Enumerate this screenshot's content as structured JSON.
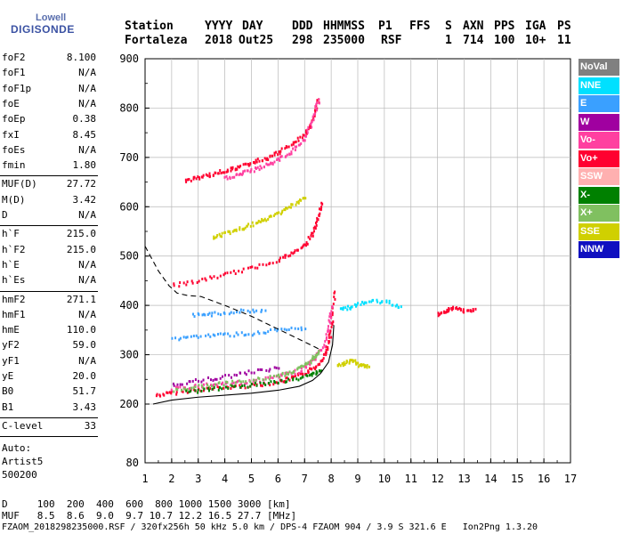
{
  "logo": {
    "top": "Lowell",
    "bottom": "DIGISONDE"
  },
  "header": {
    "labels": [
      "Station",
      "YYYY",
      "DAY",
      "DDD",
      "HHMMSS",
      "P1",
      "FFS",
      "S",
      "AXN",
      "PPS",
      "IGA",
      "PS"
    ],
    "values": [
      "Fortaleza",
      "2018",
      "Out25",
      "298",
      "235000",
      "RSF",
      "1",
      "714",
      "100",
      "10+",
      "11"
    ]
  },
  "params": {
    "groups": [
      [
        [
          "foF2",
          "8.100"
        ],
        [
          "foF1",
          "N/A"
        ],
        [
          "foF1p",
          "N/A"
        ],
        [
          "foE",
          "N/A"
        ],
        [
          "foEp",
          "0.38"
        ],
        [
          "fxI",
          "8.45"
        ],
        [
          "foEs",
          "N/A"
        ],
        [
          "fmin",
          "1.80"
        ]
      ],
      [
        [
          "MUF(D)",
          "27.72"
        ],
        [
          "M(D)",
          "3.42"
        ],
        [
          "D",
          "N/A"
        ]
      ],
      [
        [
          "h`F",
          "215.0"
        ],
        [
          "h`F2",
          "215.0"
        ],
        [
          "h`E",
          "N/A"
        ],
        [
          "h`Es",
          "N/A"
        ]
      ],
      [
        [
          "hmF2",
          "271.1"
        ],
        [
          "hmF1",
          "N/A"
        ],
        [
          "hmE",
          "110.0"
        ],
        [
          "yF2",
          "59.0"
        ],
        [
          "yF1",
          "N/A"
        ],
        [
          "yE",
          "20.0"
        ],
        [
          "B0",
          "51.7"
        ],
        [
          "B1",
          "3.43"
        ]
      ],
      [
        [
          "C-level",
          "33"
        ]
      ]
    ],
    "auto_lines": [
      "Auto:",
      "Artist5",
      "500200"
    ]
  },
  "footer": {
    "d_line": "D     100  200  400  600  800 1000 1500 3000 [km]",
    "muf_line": "MUF   8.5  8.6  9.0  9.7 10.7 12.2 16.5 27.7 [MHz]",
    "file_line": "FZAOM_2018298235000.RSF / 320fx256h 50 kHz 5.0 km / DPS-4 FZAOM 904 / 3.9 S 321.6 E   Ion2Png 1.3.20"
  },
  "legend": [
    {
      "label": "NoVal",
      "color": "#808080"
    },
    {
      "label": "NNE",
      "color": "#00e0ff"
    },
    {
      "label": "E",
      "color": "#3aa0ff"
    },
    {
      "label": "W",
      "color": "#a000a0"
    },
    {
      "label": "Vo-",
      "color": "#ff40a0"
    },
    {
      "label": "Vo+",
      "color": "#ff0030"
    },
    {
      "label": "SSW",
      "color": "#ffb0b0"
    },
    {
      "label": "X-",
      "color": "#008000"
    },
    {
      "label": "X+",
      "color": "#80c060"
    },
    {
      "label": "SSE",
      "color": "#d0d000"
    },
    {
      "label": "NNW",
      "color": "#1010c0"
    }
  ],
  "chart_data": {
    "type": "scatter",
    "xlim": [
      1,
      17
    ],
    "ylim": [
      80,
      900
    ],
    "xticks": [
      1,
      2,
      3,
      4,
      5,
      6,
      7,
      8,
      9,
      10,
      11,
      12,
      13,
      14,
      15,
      16,
      17
    ],
    "yticks": [
      80,
      200,
      300,
      400,
      500,
      600,
      700,
      800,
      900
    ],
    "grid": true,
    "traces": [
      {
        "name": "Vo+",
        "color": "#ff0030",
        "x": [
          1.4,
          2.0,
          3.0,
          4.0,
          5.0,
          6.0,
          6.5,
          7.0,
          7.4,
          7.7,
          7.9,
          8.0,
          8.1
        ],
        "y": [
          220,
          225,
          232,
          236,
          240,
          247,
          255,
          265,
          278,
          300,
          330,
          370,
          430
        ]
      },
      {
        "name": "Vo-",
        "color": "#ff40a0",
        "x": [
          2.0,
          3.0,
          4.0,
          5.0,
          6.0,
          6.8,
          7.3,
          7.7,
          7.9,
          8.0
        ],
        "y": [
          233,
          240,
          245,
          248,
          258,
          270,
          290,
          320,
          360,
          400
        ]
      },
      {
        "name": "X+",
        "color": "#80c060",
        "x": [
          2.0,
          3.0,
          4.0,
          5.0,
          6.0,
          6.5,
          7.0,
          7.3,
          7.5
        ],
        "y": [
          230,
          238,
          244,
          250,
          260,
          268,
          280,
          295,
          310
        ]
      },
      {
        "name": "Vo+",
        "color": "#ff0030",
        "x": [
          2.0,
          3.0,
          4.0,
          5.0,
          6.0,
          6.5,
          7.0,
          7.3,
          7.5,
          7.6
        ],
        "y": [
          443,
          452,
          465,
          478,
          495,
          508,
          525,
          550,
          580,
          610
        ]
      },
      {
        "name": "Vo+",
        "color": "#ff0030",
        "x": [
          2.5,
          3.0,
          3.5,
          4.0,
          4.5,
          5.0,
          5.5,
          6.0,
          6.5,
          7.0,
          7.3,
          7.5
        ],
        "y": [
          655,
          662,
          668,
          676,
          682,
          692,
          700,
          712,
          730,
          750,
          780,
          820
        ]
      },
      {
        "name": "Vo-",
        "color": "#ff40a0",
        "x": [
          4.0,
          4.5,
          5.0,
          5.5,
          6.0,
          6.5,
          7.0,
          7.3,
          7.5
        ],
        "y": [
          660,
          668,
          676,
          686,
          698,
          715,
          740,
          780,
          820
        ]
      },
      {
        "name": "SSE",
        "color": "#d0d000",
        "x": [
          3.5,
          4.0,
          4.5,
          5.0,
          5.5,
          6.0,
          6.5,
          7.0
        ],
        "y": [
          540,
          548,
          556,
          566,
          576,
          590,
          605,
          620
        ]
      },
      {
        "name": "E",
        "color": "#3aa0ff",
        "x": [
          2.0,
          3.0,
          4.0,
          5.0,
          6.0,
          7.0
        ],
        "y": [
          335,
          340,
          343,
          345,
          352,
          355
        ]
      },
      {
        "name": "E",
        "color": "#3aa0ff",
        "x": [
          2.8,
          3.5,
          4.5,
          5.5
        ],
        "y": [
          382,
          385,
          390,
          392
        ]
      },
      {
        "name": "NNE",
        "color": "#00e0ff",
        "x": [
          8.3,
          8.8,
          9.3,
          10.0,
          10.6
        ],
        "y": [
          395,
          400,
          410,
          410,
          400
        ]
      },
      {
        "name": "W",
        "color": "#a000a0",
        "x": [
          2.0,
          3.0,
          4.0,
          5.0,
          6.0
        ],
        "y": [
          242,
          250,
          258,
          268,
          275
        ]
      },
      {
        "name": "SSE",
        "color": "#d0d000",
        "x": [
          8.2,
          8.5,
          8.8,
          9.1,
          9.4
        ],
        "y": [
          282,
          285,
          290,
          280,
          278
        ]
      },
      {
        "name": "Vo+",
        "color": "#ff0030",
        "x": [
          12.0,
          12.3,
          12.6,
          13.0,
          13.4
        ],
        "y": [
          385,
          392,
          398,
          390,
          395
        ]
      },
      {
        "name": "X-",
        "color": "#008000",
        "x": [
          2.5,
          3.5,
          4.5,
          5.5,
          6.5,
          7.2,
          7.6
        ],
        "y": [
          226,
          232,
          238,
          244,
          252,
          262,
          270
        ]
      }
    ],
    "lines": [
      {
        "style": "solid",
        "x": [
          1.3,
          2,
          3,
          4,
          5,
          6,
          6.8,
          7.3,
          7.6,
          7.9,
          8.05,
          8.1
        ],
        "y": [
          200,
          208,
          214,
          218,
          222,
          228,
          236,
          248,
          262,
          285,
          320,
          360
        ]
      },
      {
        "style": "dashed",
        "x": [
          1.0,
          1.5,
          1.9,
          2.2,
          2.6,
          3.1,
          4.0,
          5.0,
          6.0,
          7.0,
          7.6
        ],
        "y": [
          520,
          470,
          440,
          425,
          420,
          418,
          400,
          378,
          352,
          326,
          310
        ]
      }
    ]
  }
}
